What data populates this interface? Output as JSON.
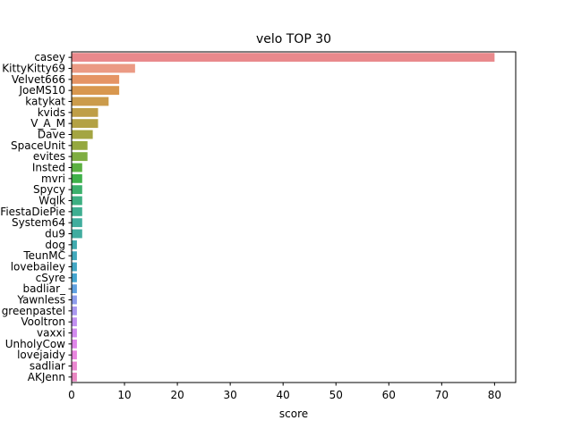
{
  "chart_data": {
    "type": "bar",
    "orientation": "horizontal",
    "title": "velo TOP 30",
    "xlabel": "score",
    "ylabel": "",
    "xlim": [
      0,
      84
    ],
    "xticks": [
      0,
      10,
      20,
      30,
      40,
      50,
      60,
      70,
      80
    ],
    "grid": false,
    "legend": "none",
    "categories": [
      "casey",
      "KittyKitty69",
      "Velvet666",
      "JoeMS10",
      "katykat",
      "kvids",
      "V_A_M",
      "Dave",
      "SpaceUnit",
      "evites",
      "Insted",
      "mvri",
      "Spycy",
      "Wqlk",
      "FiestaDiePie",
      "System64",
      "du9",
      "dog",
      "TeunMC",
      "lovebailey",
      "cSyre",
      "badliar_",
      "Yawnless",
      "greenpastel",
      "Vooltron",
      "vaxxi",
      "UnholyCow",
      "lovejaidy",
      "sadliar",
      "AKJenn"
    ],
    "values": [
      80,
      12,
      9,
      9,
      7,
      5,
      5,
      4,
      3,
      3,
      2,
      2,
      2,
      2,
      2,
      2,
      2,
      1,
      1,
      1,
      1,
      1,
      1,
      1,
      1,
      1,
      1,
      1,
      1,
      1
    ],
    "colors": [
      "#e9898c",
      "#eb9a84",
      "#e59464",
      "#d8974e",
      "#cb9b4b",
      "#bf9e47",
      "#b3a144",
      "#a4a542",
      "#95a840",
      "#7ead41",
      "#5bb041",
      "#3fb149",
      "#3cb06c",
      "#3daf82",
      "#3fae91",
      "#40ad9d",
      "#41ac9f",
      "#41abaf",
      "#42a9bc",
      "#43a7c4",
      "#44a5d0",
      "#5fa1e1",
      "#8d9ded",
      "#aa98f0",
      "#c290f1",
      "#d28aef",
      "#df85e9",
      "#e885df",
      "#ea86d0",
      "#e987c2"
    ]
  }
}
